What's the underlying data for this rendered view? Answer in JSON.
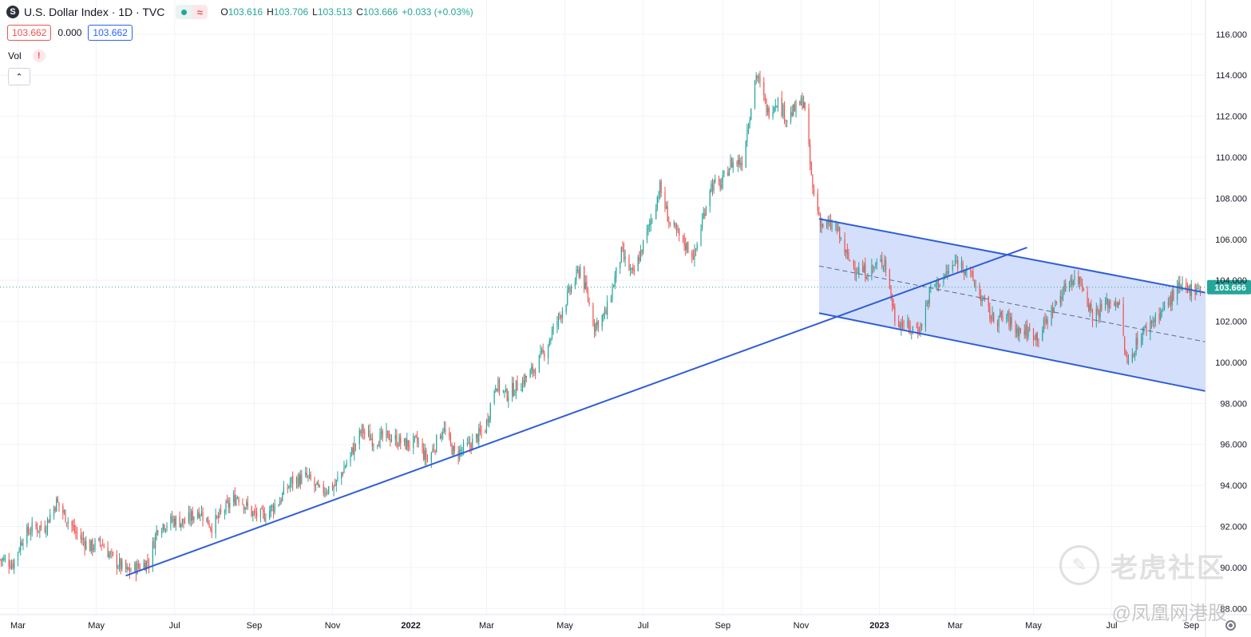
{
  "header": {
    "symbol_badge": "S",
    "title": "U.S. Dollar Index · 1D · TVC",
    "status_icon": "≈",
    "ohlc": [
      {
        "k": "O",
        "v": "103.616"
      },
      {
        "k": "H",
        "v": "103.706"
      },
      {
        "k": "L",
        "v": "103.513"
      },
      {
        "k": "C",
        "v": "103.666"
      },
      {
        "k": "",
        "v": "+0.033 (+0.03%)"
      }
    ]
  },
  "quote": {
    "bid": "103.662",
    "spread": "0.000",
    "ask": "103.662"
  },
  "volume": {
    "label": "Vol",
    "alert": "!"
  },
  "collapse_icon": "⌃",
  "watermark": {
    "main": "老虎社区",
    "sub": "@凤凰网港股"
  },
  "colors": {
    "up": "#26a69a",
    "down": "#ef5350",
    "drawing": "#2f5ed6",
    "channel_fill": "#cfdcfb",
    "price_tag": "#26a69a"
  },
  "chart_data": {
    "type": "candlestick",
    "title": "U.S. Dollar Index · 1D · TVC",
    "timeframe": "1D",
    "x_range": [
      "2021-02-15",
      "2023-09-12"
    ],
    "ylim": [
      87.7,
      116.5
    ],
    "y_ticks": [
      "116.000",
      "114.000",
      "112.000",
      "110.000",
      "108.000",
      "106.000",
      "104.000",
      "102.000",
      "100.000",
      "98.000",
      "96.000",
      "94.000",
      "92.000",
      "90.000",
      "88.000"
    ],
    "x_ticks": [
      {
        "label": "Mar",
        "date": "2021-03-01",
        "bold": false
      },
      {
        "label": "May",
        "date": "2021-05-01",
        "bold": false
      },
      {
        "label": "Jul",
        "date": "2021-07-01",
        "bold": false
      },
      {
        "label": "Sep",
        "date": "2021-09-01",
        "bold": false
      },
      {
        "label": "Nov",
        "date": "2021-11-01",
        "bold": false
      },
      {
        "label": "2022",
        "date": "2022-01-01",
        "bold": true
      },
      {
        "label": "Mar",
        "date": "2022-03-01",
        "bold": false
      },
      {
        "label": "May",
        "date": "2022-05-01",
        "bold": false
      },
      {
        "label": "Jul",
        "date": "2022-07-01",
        "bold": false
      },
      {
        "label": "Sep",
        "date": "2022-09-01",
        "bold": false
      },
      {
        "label": "Nov",
        "date": "2022-11-01",
        "bold": false
      },
      {
        "label": "2023",
        "date": "2023-01-01",
        "bold": true
      },
      {
        "label": "Mar",
        "date": "2023-03-01",
        "bold": false
      },
      {
        "label": "May",
        "date": "2023-05-01",
        "bold": false
      },
      {
        "label": "Jul",
        "date": "2023-07-01",
        "bold": false
      },
      {
        "label": "Sep",
        "date": "2023-09-01",
        "bold": false
      }
    ],
    "last_price": 103.666,
    "last_price_label": "103.666",
    "closes": [
      [
        "2021-02-15",
        90.4
      ],
      [
        "2021-02-25",
        90.2
      ],
      [
        "2021-03-05",
        91.5
      ],
      [
        "2021-03-12",
        91.9
      ],
      [
        "2021-03-22",
        92.0
      ],
      [
        "2021-03-31",
        93.2
      ],
      [
        "2021-04-08",
        92.4
      ],
      [
        "2021-04-16",
        91.6
      ],
      [
        "2021-04-26",
        91.0
      ],
      [
        "2021-05-05",
        91.2
      ],
      [
        "2021-05-14",
        90.4
      ],
      [
        "2021-05-25",
        89.8
      ],
      [
        "2021-06-02",
        90.0
      ],
      [
        "2021-06-11",
        90.3
      ],
      [
        "2021-06-18",
        92.0
      ],
      [
        "2021-06-30",
        92.3
      ],
      [
        "2021-07-09",
        92.2
      ],
      [
        "2021-07-20",
        92.8
      ],
      [
        "2021-07-30",
        92.0
      ],
      [
        "2021-08-10",
        92.9
      ],
      [
        "2021-08-19",
        93.5
      ],
      [
        "2021-08-31",
        92.6
      ],
      [
        "2021-09-08",
        92.5
      ],
      [
        "2021-09-20",
        93.2
      ],
      [
        "2021-09-30",
        94.2
      ],
      [
        "2021-10-12",
        94.4
      ],
      [
        "2021-10-22",
        93.7
      ],
      [
        "2021-11-03",
        94.0
      ],
      [
        "2021-11-12",
        95.1
      ],
      [
        "2021-11-24",
        96.7
      ],
      [
        "2021-12-03",
        96.2
      ],
      [
        "2021-12-15",
        96.4
      ],
      [
        "2021-12-27",
        96.0
      ],
      [
        "2022-01-06",
        96.1
      ],
      [
        "2022-01-14",
        95.2
      ],
      [
        "2022-01-26",
        96.8
      ],
      [
        "2022-02-04",
        95.5
      ],
      [
        "2022-02-15",
        95.9
      ],
      [
        "2022-02-28",
        96.8
      ],
      [
        "2022-03-08",
        99.0
      ],
      [
        "2022-03-16",
        98.4
      ],
      [
        "2022-03-28",
        99.0
      ],
      [
        "2022-04-06",
        99.6
      ],
      [
        "2022-04-14",
        100.4
      ],
      [
        "2022-04-25",
        102.0
      ],
      [
        "2022-05-05",
        103.5
      ],
      [
        "2022-05-13",
        104.6
      ],
      [
        "2022-05-24",
        101.8
      ],
      [
        "2022-06-02",
        102.4
      ],
      [
        "2022-06-14",
        105.3
      ],
      [
        "2022-06-23",
        104.2
      ],
      [
        "2022-07-05",
        106.5
      ],
      [
        "2022-07-14",
        108.5
      ],
      [
        "2022-07-22",
        106.7
      ],
      [
        "2022-08-02",
        105.8
      ],
      [
        "2022-08-10",
        105.2
      ],
      [
        "2022-08-22",
        108.6
      ],
      [
        "2022-08-31",
        108.7
      ],
      [
        "2022-09-07",
        109.7
      ],
      [
        "2022-09-16",
        109.8
      ],
      [
        "2022-09-27",
        114.1
      ],
      [
        "2022-10-06",
        112.2
      ],
      [
        "2022-10-13",
        112.8
      ],
      [
        "2022-10-21",
        111.9
      ],
      [
        "2022-11-03",
        112.8
      ],
      [
        "2022-11-10",
        108.4
      ],
      [
        "2022-11-17",
        106.7
      ],
      [
        "2022-11-28",
        106.6
      ],
      [
        "2022-12-07",
        105.1
      ],
      [
        "2022-12-15",
        104.5
      ],
      [
        "2022-12-23",
        104.4
      ],
      [
        "2023-01-05",
        105.0
      ],
      [
        "2023-01-13",
        102.2
      ],
      [
        "2023-01-25",
        101.6
      ],
      [
        "2023-02-02",
        101.7
      ],
      [
        "2023-02-10",
        103.6
      ],
      [
        "2023-02-21",
        104.2
      ],
      [
        "2023-03-02",
        104.9
      ],
      [
        "2023-03-10",
        104.6
      ],
      [
        "2023-03-20",
        103.3
      ],
      [
        "2023-03-30",
        102.1
      ],
      [
        "2023-04-10",
        102.2
      ],
      [
        "2023-04-17",
        101.6
      ],
      [
        "2023-04-27",
        101.5
      ],
      [
        "2023-05-05",
        101.3
      ],
      [
        "2023-05-16",
        102.6
      ],
      [
        "2023-05-30",
        104.1
      ],
      [
        "2023-06-07",
        104.0
      ],
      [
        "2023-06-16",
        102.3
      ],
      [
        "2023-06-28",
        102.9
      ],
      [
        "2023-07-06",
        103.0
      ],
      [
        "2023-07-13",
        99.8
      ],
      [
        "2023-07-21",
        101.1
      ],
      [
        "2023-08-01",
        102.0
      ],
      [
        "2023-08-10",
        102.6
      ],
      [
        "2023-08-22",
        103.6
      ],
      [
        "2023-08-29",
        103.5
      ],
      [
        "2023-09-05",
        103.7
      ],
      [
        "2023-09-08",
        103.66
      ]
    ],
    "drawings": {
      "trendline": {
        "from": [
          "2021-05-24",
          89.6
        ],
        "to": [
          "2023-04-26",
          105.6
        ]
      },
      "channel": {
        "start": "2022-11-15",
        "end": "2023-09-12",
        "upper": [
          107.0,
          103.4
        ],
        "mid": [
          104.7,
          101.0
        ],
        "lower": [
          102.4,
          98.6
        ]
      }
    }
  }
}
